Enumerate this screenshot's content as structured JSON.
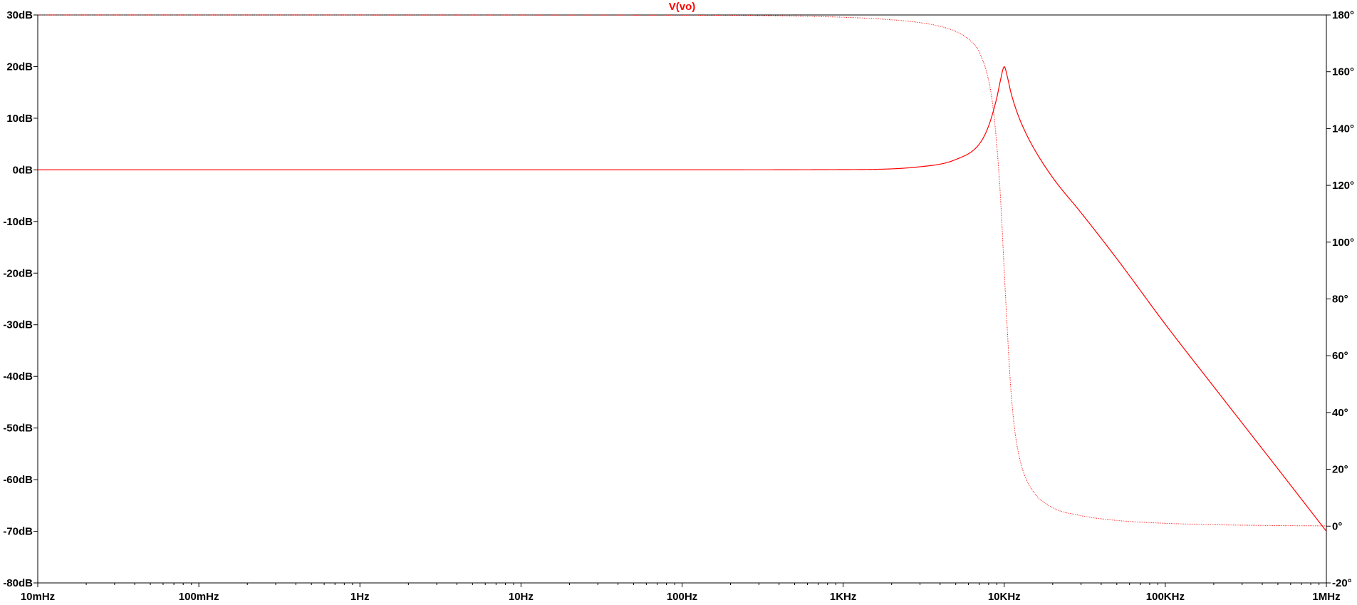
{
  "chart_data": {
    "type": "line",
    "title": "V(vo)",
    "xlabel": "",
    "ylabel_left": "",
    "ylabel_right": "",
    "x_scale": "log",
    "xlim": [
      0.01,
      1000000
    ],
    "ylim_left": [
      -80,
      30
    ],
    "ylim_right": [
      -20,
      180
    ],
    "grid": false,
    "legend": "none",
    "colors": {
      "trace": "#ff0000",
      "axis": "#000000",
      "background": "#ffffff"
    },
    "x_ticks": [
      {
        "value": 0.01,
        "label": "10mHz"
      },
      {
        "value": 0.1,
        "label": "100mHz"
      },
      {
        "value": 1,
        "label": "1Hz"
      },
      {
        "value": 10,
        "label": "10Hz"
      },
      {
        "value": 100,
        "label": "100Hz"
      },
      {
        "value": 1000,
        "label": "1KHz"
      },
      {
        "value": 10000,
        "label": "10KHz"
      },
      {
        "value": 100000,
        "label": "100KHz"
      },
      {
        "value": 1000000,
        "label": "1MHz"
      }
    ],
    "y_ticks_left": [
      {
        "value": 30,
        "label": "30dB"
      },
      {
        "value": 20,
        "label": "20dB"
      },
      {
        "value": 10,
        "label": "10dB"
      },
      {
        "value": 0,
        "label": "0dB"
      },
      {
        "value": -10,
        "label": "-10dB"
      },
      {
        "value": -20,
        "label": "-20dB"
      },
      {
        "value": -30,
        "label": "-30dB"
      },
      {
        "value": -40,
        "label": "-40dB"
      },
      {
        "value": -50,
        "label": "-50dB"
      },
      {
        "value": -60,
        "label": "-60dB"
      },
      {
        "value": -70,
        "label": "-70dB"
      },
      {
        "value": -80,
        "label": "-80dB"
      }
    ],
    "y_ticks_right": [
      {
        "value": 180,
        "label": "180°"
      },
      {
        "value": 160,
        "label": "160°"
      },
      {
        "value": 140,
        "label": "140°"
      },
      {
        "value": 120,
        "label": "120°"
      },
      {
        "value": 100,
        "label": "100°"
      },
      {
        "value": 80,
        "label": "80°"
      },
      {
        "value": 60,
        "label": "60°"
      },
      {
        "value": 40,
        "label": "40°"
      },
      {
        "value": 20,
        "label": "20°"
      },
      {
        "value": 0,
        "label": "0°"
      },
      {
        "value": -20,
        "label": "-20°"
      }
    ],
    "series": [
      {
        "name": "magnitude",
        "axis": "left",
        "style": "solid",
        "x": [
          0.01,
          1,
          100,
          1000,
          3000,
          5000,
          7000,
          8000,
          9000,
          9500,
          10000,
          10500,
          11000,
          12000,
          13000,
          15000,
          20000,
          30000,
          50000,
          100000,
          200000,
          500000,
          1000000
        ],
        "y": [
          0,
          0,
          0,
          0.05,
          0.6,
          2.0,
          5.0,
          8.5,
          14.0,
          17.5,
          20.0,
          17.8,
          15.0,
          11.2,
          8.5,
          4.6,
          -1.5,
          -8.3,
          -17.2,
          -29.9,
          -42.0,
          -57.9,
          -70.0
        ]
      },
      {
        "name": "phase",
        "axis": "right",
        "style": "dotted",
        "x": [
          0.01,
          100,
          1000,
          2000,
          3000,
          4000,
          5000,
          6000,
          7000,
          8000,
          8500,
          9000,
          9500,
          10000,
          10500,
          11000,
          11500,
          12000,
          13000,
          15000,
          20000,
          30000,
          50000,
          100000,
          200000,
          500000,
          1000000
        ],
        "y": [
          180,
          179.9,
          179.2,
          178.3,
          177.3,
          176.0,
          174.2,
          171.5,
          166.9,
          157.0,
          148.0,
          134.0,
          115.0,
          90.0,
          67.0,
          48.0,
          36.0,
          28.5,
          20.0,
          12.5,
          6.5,
          3.7,
          2.0,
          1.0,
          0.5,
          0.2,
          0.1
        ]
      }
    ]
  }
}
